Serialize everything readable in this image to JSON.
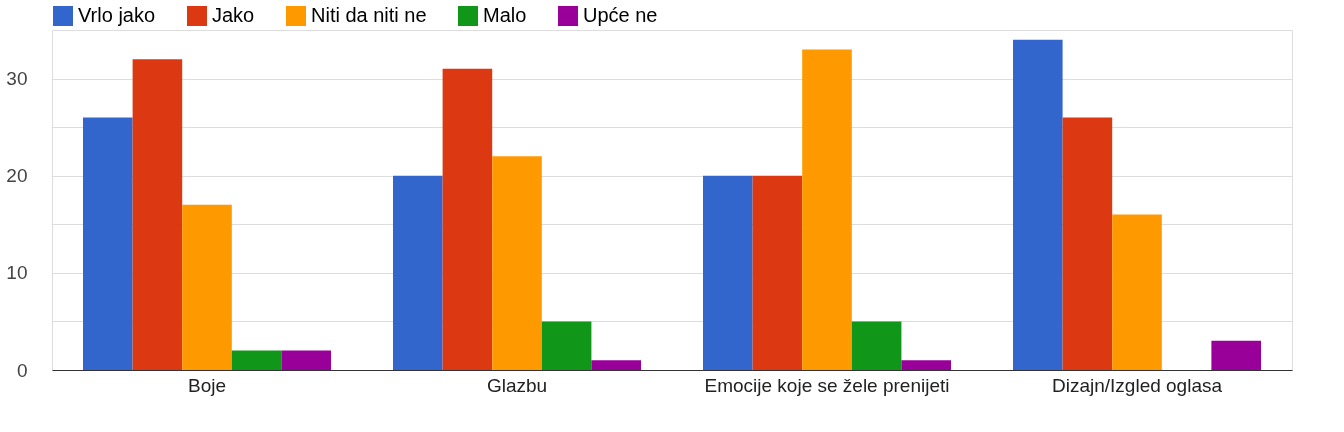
{
  "chart_data": {
    "type": "bar",
    "categories": [
      "Boje",
      "Glazbu",
      "Emocije koje se žele prenijeti",
      "Dizajn/Izgled oglasa"
    ],
    "series": [
      {
        "name": "Vrlo jako",
        "color": "#3366cc",
        "values": [
          26,
          20,
          20,
          34
        ]
      },
      {
        "name": "Jako",
        "color": "#dc3912",
        "values": [
          32,
          31,
          20,
          26
        ]
      },
      {
        "name": "Niti da niti ne",
        "color": "#ff9900",
        "values": [
          17,
          22,
          33,
          16
        ]
      },
      {
        "name": "Malo",
        "color": "#109618",
        "values": [
          2,
          5,
          5,
          0
        ]
      },
      {
        "name": "Upće ne",
        "color": "#990099",
        "values": [
          2,
          1,
          1,
          3
        ]
      }
    ],
    "ylim": [
      0,
      35
    ],
    "yticks": [
      0,
      {
        "value": 5,
        "label": null
      },
      10,
      {
        "value": 15,
        "label": null
      },
      20,
      {
        "value": 25,
        "label": null
      },
      30
    ],
    "grid": "y",
    "legend": "top left"
  }
}
